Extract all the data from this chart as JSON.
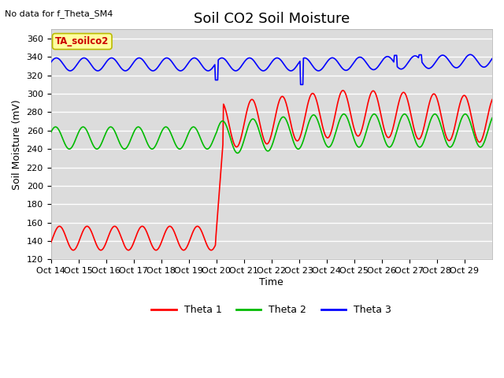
{
  "title": "Soil CO2 Soil Moisture",
  "ylabel": "Soil Moisture (mV)",
  "xlabel": "Time",
  "no_data_text": "No data for f_Theta_SM4",
  "annotation_text": "TA_soilco2",
  "ylim": [
    120,
    370
  ],
  "yticks": [
    120,
    140,
    160,
    180,
    200,
    220,
    240,
    260,
    280,
    300,
    320,
    340,
    360
  ],
  "xtick_labels": [
    "Oct 14",
    "Oct 15",
    "Oct 16",
    "Oct 17",
    "Oct 18",
    "Oct 19",
    "Oct 20",
    "Oct 21",
    "Oct 22",
    "Oct 23",
    "Oct 24",
    "Oct 25",
    "Oct 26",
    "Oct 27",
    "Oct 28",
    "Oct 29"
  ],
  "legend_labels": [
    "Theta 1",
    "Theta 2",
    "Theta 3"
  ],
  "legend_colors": [
    "#ff0000",
    "#00cc00",
    "#0000ff"
  ],
  "bg_color": "#dcdcdc",
  "title_fontsize": 13,
  "label_fontsize": 9,
  "tick_fontsize": 8
}
